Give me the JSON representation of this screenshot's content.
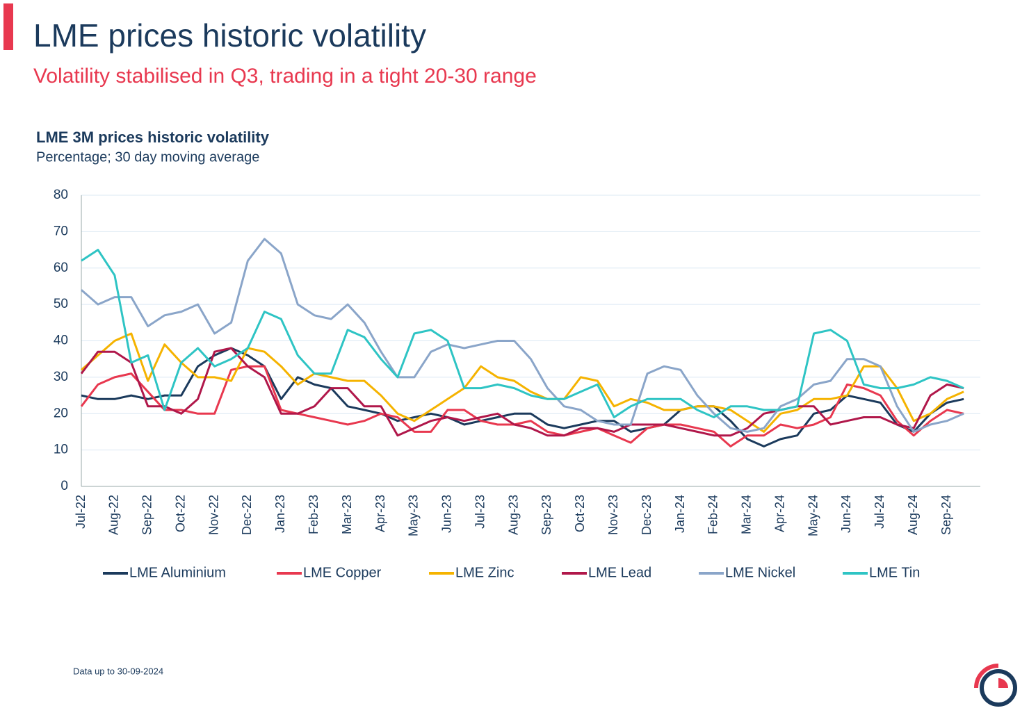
{
  "title": "LME prices historic volatility",
  "subtitle": "Volatility stabilised in Q3, trading in a tight 20-30 range",
  "footnote": "Data up to 30-09-2024",
  "chart_data": {
    "type": "line",
    "title": "LME 3M prices historic volatility",
    "subtitle": "Percentage; 30 day moving average",
    "categories": [
      "Jul-22",
      null,
      "Aug-22",
      null,
      "Sep-22",
      null,
      "Oct-22",
      null,
      "Nov-22",
      null,
      "Dec-22",
      null,
      "Jan-23",
      null,
      "Feb-23",
      null,
      "Mar-23",
      null,
      "Apr-23",
      null,
      "May-23",
      null,
      "Jun-23",
      null,
      "Jul-23",
      null,
      "Aug-23",
      null,
      "Sep-23",
      null,
      "Oct-23",
      null,
      "Nov-23",
      null,
      "Dec-23",
      null,
      "Jan-24",
      null,
      "Feb-24",
      null,
      "Mar-24",
      null,
      "Apr-24",
      null,
      "May-24",
      null,
      "Jun-24",
      null,
      "Jul-24",
      null,
      "Aug-24",
      null,
      "Sep-24",
      null
    ],
    "ylim": [
      0,
      80
    ],
    "yticks": [
      0,
      10,
      20,
      30,
      40,
      50,
      60,
      70,
      80
    ],
    "grid": true,
    "legend": "bottom",
    "series": [
      {
        "name": "LME Aluminium",
        "color": "#1b3a5c",
        "values": [
          25,
          24,
          24,
          25,
          24,
          25,
          25,
          33,
          36,
          38,
          36,
          33,
          24,
          30,
          28,
          27,
          22,
          21,
          20,
          18,
          19,
          20,
          19,
          17,
          18,
          19,
          20,
          20,
          17,
          16,
          17,
          18,
          18,
          15,
          16,
          17,
          21,
          22,
          22,
          18,
          13,
          11,
          13,
          14,
          20,
          21,
          25,
          24,
          23,
          17,
          15,
          20,
          23,
          24
        ]
      },
      {
        "name": "LME Copper",
        "color": "#e8384f",
        "values": [
          22,
          28,
          30,
          31,
          26,
          21,
          21,
          20,
          20,
          32,
          33,
          33,
          21,
          20,
          19,
          18,
          17,
          18,
          20,
          19,
          15,
          15,
          21,
          21,
          18,
          17,
          17,
          18,
          15,
          14,
          15,
          16,
          14,
          12,
          16,
          17,
          17,
          16,
          15,
          11,
          14,
          14,
          17,
          16,
          17,
          19,
          28,
          27,
          25,
          18,
          14,
          18,
          21,
          20
        ]
      },
      {
        "name": "LME Zinc",
        "color": "#f5b300",
        "values": [
          32,
          36,
          40,
          42,
          29,
          39,
          34,
          30,
          30,
          29,
          38,
          37,
          33,
          28,
          31,
          30,
          29,
          29,
          25,
          20,
          18,
          21,
          24,
          27,
          33,
          30,
          29,
          26,
          24,
          24,
          30,
          29,
          22,
          24,
          23,
          21,
          21,
          22,
          22,
          21,
          18,
          15,
          20,
          21,
          24,
          24,
          25,
          33,
          33,
          27,
          18,
          20,
          24,
          26
        ]
      },
      {
        "name": "LME Lead",
        "color": "#b0174a",
        "values": [
          31,
          37,
          37,
          34,
          22,
          22,
          20,
          24,
          37,
          38,
          33,
          30,
          20,
          20,
          22,
          27,
          27,
          22,
          22,
          14,
          16,
          18,
          19,
          18,
          19,
          20,
          17,
          16,
          14,
          14,
          16,
          16,
          15,
          17,
          17,
          17,
          16,
          15,
          14,
          14,
          16,
          20,
          21,
          22,
          22,
          17,
          18,
          19,
          19,
          17,
          16,
          25,
          28,
          27
        ]
      },
      {
        "name": "LME Nickel",
        "color": "#8aa5c9",
        "values": [
          54,
          50,
          52,
          52,
          44,
          47,
          48,
          50,
          42,
          45,
          62,
          68,
          64,
          50,
          47,
          46,
          50,
          45,
          37,
          30,
          30,
          37,
          39,
          38,
          39,
          40,
          40,
          35,
          27,
          22,
          21,
          18,
          17,
          17,
          31,
          33,
          32,
          25,
          20,
          16,
          15,
          16,
          22,
          24,
          28,
          29,
          35,
          35,
          33,
          22,
          15,
          17,
          18,
          20
        ]
      },
      {
        "name": "LME Tin",
        "color": "#2ec4c4",
        "values": [
          62,
          65,
          58,
          34,
          36,
          21,
          34,
          38,
          33,
          35,
          38,
          48,
          46,
          36,
          31,
          31,
          43,
          41,
          35,
          30,
          42,
          43,
          40,
          27,
          27,
          28,
          27,
          25,
          24,
          24,
          26,
          28,
          19,
          22,
          24,
          24,
          24,
          21,
          19,
          22,
          22,
          21,
          21,
          22,
          42,
          43,
          40,
          28,
          27,
          27,
          28,
          30,
          29,
          27
        ]
      }
    ]
  }
}
